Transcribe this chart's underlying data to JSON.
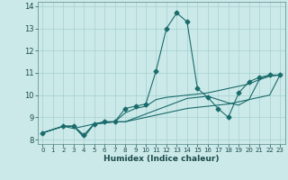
{
  "xlabel": "Humidex (Indice chaleur)",
  "xlim": [
    -0.5,
    23.5
  ],
  "ylim": [
    7.8,
    14.2
  ],
  "xticks": [
    0,
    1,
    2,
    3,
    4,
    5,
    6,
    7,
    8,
    9,
    10,
    11,
    12,
    13,
    14,
    15,
    16,
    17,
    18,
    19,
    20,
    21,
    22,
    23
  ],
  "yticks": [
    8,
    9,
    10,
    11,
    12,
    13,
    14
  ],
  "background_color": "#cce9e9",
  "grid_color": "#aad4d4",
  "line_color": "#1a6b6b",
  "series": [
    {
      "x": [
        0,
        2,
        3,
        4,
        5,
        6,
        7,
        8,
        9,
        10,
        11,
        12,
        13,
        14,
        15,
        16,
        17,
        18,
        19,
        20,
        21,
        22,
        23
      ],
      "y": [
        8.3,
        8.6,
        8.6,
        8.2,
        8.7,
        8.8,
        8.8,
        9.4,
        9.5,
        9.6,
        11.1,
        13.0,
        13.7,
        13.3,
        10.3,
        9.9,
        9.4,
        9.0,
        10.1,
        10.6,
        10.8,
        10.9,
        10.9
      ],
      "marker": "D",
      "markersize": 2.5
    },
    {
      "x": [
        0,
        2,
        3,
        4,
        5,
        6,
        7,
        8,
        9,
        10,
        11,
        12,
        14,
        16,
        18,
        19,
        20,
        21,
        22,
        23
      ],
      "y": [
        8.3,
        8.6,
        8.6,
        8.2,
        8.7,
        8.8,
        8.8,
        9.2,
        9.4,
        9.5,
        9.8,
        9.9,
        10.0,
        10.1,
        10.3,
        10.4,
        10.5,
        10.7,
        10.9,
        10.9
      ],
      "marker": null,
      "markersize": 0
    },
    {
      "x": [
        0,
        2,
        3,
        5,
        6,
        7,
        8,
        9,
        10,
        11,
        12,
        14,
        16,
        18,
        19,
        20,
        21,
        22,
        23
      ],
      "y": [
        8.3,
        8.6,
        8.5,
        8.7,
        8.75,
        8.8,
        8.8,
        8.9,
        9.0,
        9.1,
        9.2,
        9.4,
        9.5,
        9.6,
        9.7,
        9.8,
        9.9,
        10.0,
        10.9
      ],
      "marker": null,
      "markersize": 0
    },
    {
      "x": [
        0,
        2,
        3,
        4,
        5,
        6,
        7,
        8,
        14,
        16,
        18,
        19,
        20,
        21,
        22,
        23
      ],
      "y": [
        8.3,
        8.6,
        8.6,
        8.1,
        8.7,
        8.75,
        8.8,
        8.8,
        9.85,
        9.95,
        9.65,
        9.55,
        9.8,
        10.7,
        10.85,
        10.9
      ],
      "marker": null,
      "markersize": 0
    }
  ]
}
